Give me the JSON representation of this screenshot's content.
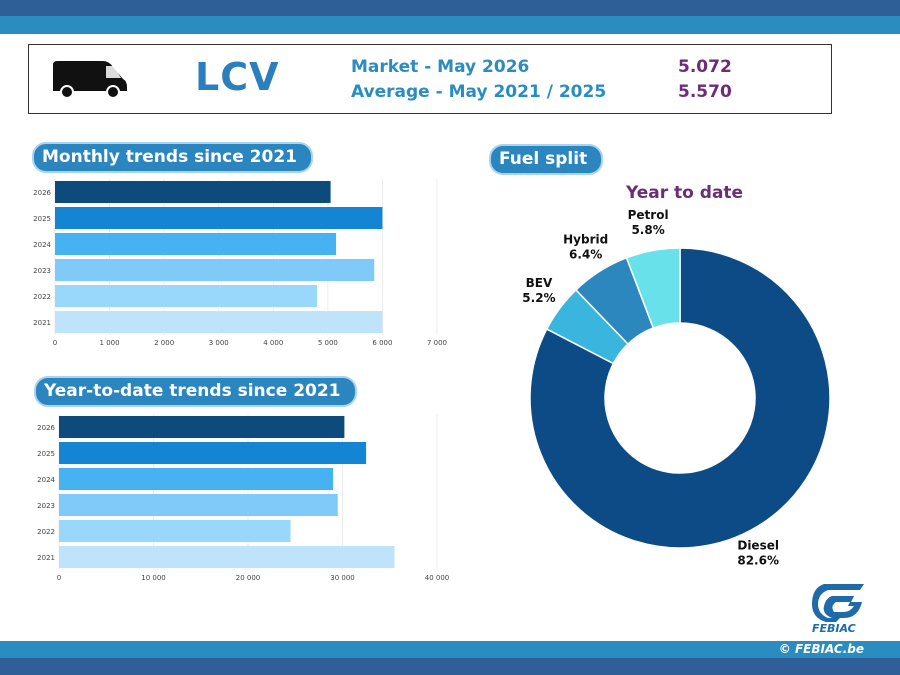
{
  "header": {
    "category": "LCV",
    "market_label": "Market - May 2026",
    "market_value": "5.072",
    "average_label": "Average - May 2021 / 2025",
    "average_value": "5.570"
  },
  "sections": {
    "monthly": "Monthly trends since 2021",
    "ytd": "Year-to-date trends since 2021",
    "fuel": "Fuel split"
  },
  "footer": {
    "logo": "FEBIAC",
    "copyright": "© FEBIAC.be"
  },
  "colors": {
    "years": [
      "#bfe3fb",
      "#99d7fb",
      "#7fcaf8",
      "#47b2f1",
      "#1385d3",
      "#0d4b7d"
    ],
    "fuel": [
      "#0d4b87",
      "#3ab5de",
      "#2b87bd",
      "#68e1ea"
    ]
  },
  "chart_data": [
    {
      "type": "bar",
      "orientation": "horizontal",
      "categories": [
        "2021",
        "2022",
        "2023",
        "2024",
        "2025",
        "2026"
      ],
      "values": [
        6000,
        4800,
        5850,
        5150,
        6000,
        5050
      ],
      "xlim": [
        0,
        7000
      ],
      "xticks": [
        "0",
        "1 000",
        "2 000",
        "3 000",
        "4 000",
        "5 000",
        "6 000",
        "7 000"
      ],
      "tick_values": [
        0,
        1000,
        2000,
        3000,
        4000,
        5000,
        6000,
        7000
      ]
    },
    {
      "type": "bar",
      "orientation": "horizontal",
      "categories": [
        "2021",
        "2022",
        "2023",
        "2024",
        "2025",
        "2026"
      ],
      "values": [
        35500,
        24500,
        29500,
        29000,
        32500,
        30200
      ],
      "xlim": [
        0,
        40000
      ],
      "xticks": [
        "0",
        "10 000",
        "20 000",
        "30 000",
        "40 000"
      ],
      "tick_values": [
        0,
        10000,
        20000,
        30000,
        40000
      ]
    },
    {
      "type": "pie",
      "title": "Year to date",
      "slices": [
        {
          "label": "Diesel",
          "value": 82.6,
          "text": "82.6%"
        },
        {
          "label": "BEV",
          "value": 5.2,
          "text": "5.2%"
        },
        {
          "label": "Hybrid",
          "value": 6.4,
          "text": "6.4%"
        },
        {
          "label": "Petrol",
          "value": 5.8,
          "text": "5.8%"
        }
      ]
    }
  ]
}
